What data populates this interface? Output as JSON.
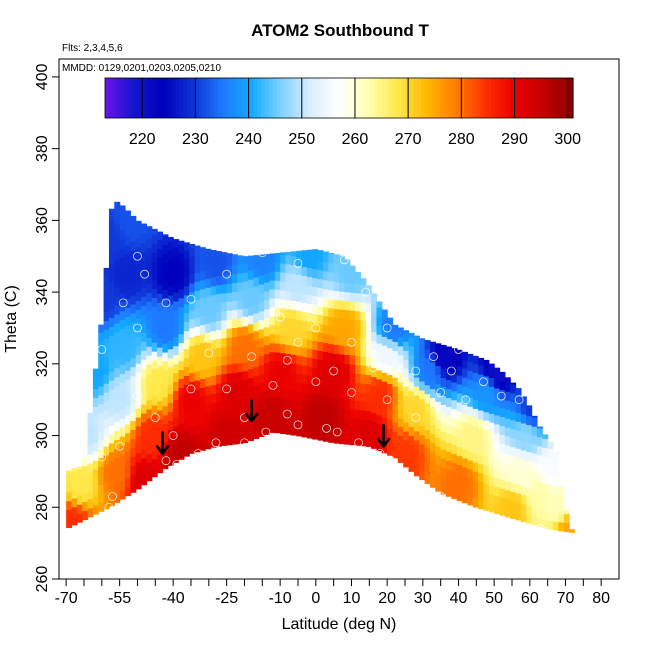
{
  "chart_data": {
    "type": "heatmap",
    "title": "ATOM2 Southbound T",
    "annotations": [
      "Flts: 2,3,4,5,6",
      "MMDD: 0129,0201,0203,0205,0210"
    ],
    "xlabel": "Latitude (deg N)",
    "ylabel": "Theta (C)",
    "xlim": [
      -72,
      85
    ],
    "ylim": [
      260,
      405
    ],
    "x_ticks": [
      -70,
      -55,
      -40,
      -25,
      -10,
      0,
      10,
      20,
      30,
      40,
      50,
      60,
      70,
      80
    ],
    "x_minor_ticks": [
      -65,
      -60,
      -50,
      -45,
      -35,
      -30,
      -20,
      -15,
      -5,
      5,
      15,
      25,
      35,
      45,
      55,
      65,
      75
    ],
    "y_ticks": [
      260,
      280,
      300,
      320,
      340,
      360,
      380,
      400
    ],
    "colorbar": {
      "min": 213,
      "max": 301,
      "ticks": [
        220,
        230,
        240,
        250,
        260,
        270,
        280,
        290,
        300
      ],
      "colors": [
        "#6a14ee",
        "#1414cd",
        "#0000bd",
        "#0f32d6",
        "#1e78ff",
        "#12aaff",
        "#7ed0ff",
        "#d8eeff",
        "#ffffff",
        "#ffffb4",
        "#ffe94a",
        "#ffb700",
        "#ff7d00",
        "#ff3000",
        "#eb0000",
        "#c40000",
        "#8a0000"
      ]
    },
    "envelope": {
      "top": [
        [
          -70,
          290
        ],
        [
          -65,
          292
        ],
        [
          -60,
          333
        ],
        [
          -57,
          366
        ],
        [
          -54,
          364
        ],
        [
          -50,
          360
        ],
        [
          -40,
          355
        ],
        [
          -30,
          352
        ],
        [
          -20,
          350
        ],
        [
          -10,
          351
        ],
        [
          0,
          352
        ],
        [
          8,
          350
        ],
        [
          14,
          343
        ],
        [
          18,
          337
        ],
        [
          22,
          331
        ],
        [
          30,
          327
        ],
        [
          40,
          324
        ],
        [
          48,
          321
        ],
        [
          52,
          318
        ],
        [
          57,
          313
        ],
        [
          60,
          308
        ],
        [
          63,
          302
        ],
        [
          66,
          298
        ],
        [
          68,
          294
        ],
        [
          70,
          280
        ],
        [
          72,
          273
        ]
      ],
      "bottom": [
        [
          -70,
          274
        ],
        [
          -58,
          280
        ],
        [
          -50,
          285
        ],
        [
          -42,
          291
        ],
        [
          -35,
          295
        ],
        [
          -28,
          297
        ],
        [
          -20,
          298
        ],
        [
          -12,
          301
        ],
        [
          -5,
          300
        ],
        [
          5,
          298
        ],
        [
          15,
          297
        ],
        [
          22,
          294
        ],
        [
          28,
          289
        ],
        [
          35,
          284
        ],
        [
          45,
          280
        ],
        [
          55,
          277
        ],
        [
          65,
          274
        ],
        [
          72,
          273
        ]
      ]
    },
    "field_points": [
      [
        -68,
        276,
        285
      ],
      [
        -66,
        286,
        268
      ],
      [
        -64,
        300,
        250
      ],
      [
        -62,
        318,
        240
      ],
      [
        -60,
        338,
        230
      ],
      [
        -58,
        355,
        230
      ],
      [
        -56,
        290,
        280
      ],
      [
        -55,
        310,
        250
      ],
      [
        -54,
        325,
        242
      ],
      [
        -53,
        345,
        228
      ],
      [
        -52,
        360,
        232
      ],
      [
        -48,
        288,
        292
      ],
      [
        -46,
        300,
        285
      ],
      [
        -44,
        315,
        268
      ],
      [
        -42,
        330,
        235
      ],
      [
        -40,
        345,
        224
      ],
      [
        -38,
        295,
        296
      ],
      [
        -35,
        310,
        290
      ],
      [
        -32,
        322,
        272
      ],
      [
        -30,
        335,
        245
      ],
      [
        -28,
        348,
        232
      ],
      [
        -25,
        300,
        294
      ],
      [
        -22,
        312,
        292
      ],
      [
        -20,
        325,
        280
      ],
      [
        -18,
        338,
        245
      ],
      [
        -15,
        349,
        236
      ],
      [
        -12,
        305,
        295
      ],
      [
        -10,
        318,
        290
      ],
      [
        -7,
        330,
        270
      ],
      [
        -5,
        342,
        250
      ],
      [
        -2,
        350,
        240
      ],
      [
        2,
        305,
        296
      ],
      [
        5,
        318,
        292
      ],
      [
        8,
        330,
        275
      ],
      [
        10,
        345,
        245
      ],
      [
        15,
        300,
        292
      ],
      [
        18,
        312,
        285
      ],
      [
        20,
        322,
        255
      ],
      [
        22,
        330,
        235
      ],
      [
        25,
        295,
        284
      ],
      [
        28,
        308,
        270
      ],
      [
        32,
        318,
        235
      ],
      [
        36,
        322,
        222
      ],
      [
        40,
        287,
        280
      ],
      [
        44,
        300,
        265
      ],
      [
        48,
        312,
        238
      ],
      [
        51,
        318,
        220
      ],
      [
        55,
        280,
        272
      ],
      [
        57,
        290,
        260
      ],
      [
        59,
        300,
        247
      ],
      [
        61,
        307,
        230
      ],
      [
        63,
        284,
        263
      ],
      [
        66,
        290,
        256
      ],
      [
        68,
        280,
        262
      ],
      [
        71,
        274,
        275
      ]
    ],
    "markers": [
      [
        -42,
        293
      ],
      [
        -39,
        292
      ],
      [
        -33,
        295
      ],
      [
        -28,
        298
      ],
      [
        -20,
        298
      ],
      [
        -14,
        301
      ],
      [
        -5,
        303
      ],
      [
        3,
        302
      ],
      [
        12,
        298
      ],
      [
        18,
        295
      ],
      [
        21,
        293
      ],
      [
        -45,
        305
      ],
      [
        -35,
        313
      ],
      [
        -25,
        313
      ],
      [
        -12,
        314
      ],
      [
        0,
        315
      ],
      [
        10,
        312
      ],
      [
        20,
        310
      ],
      [
        28,
        305
      ],
      [
        -55,
        297
      ],
      [
        -50,
        311
      ],
      [
        -45,
        320
      ],
      [
        -30,
        323
      ],
      [
        -18,
        322
      ],
      [
        -8,
        321
      ],
      [
        5,
        318
      ],
      [
        16,
        319
      ],
      [
        28,
        318
      ],
      [
        38,
        318
      ],
      [
        47,
        315
      ],
      [
        -54,
        337
      ],
      [
        -50,
        330
      ],
      [
        -42,
        337
      ],
      [
        -35,
        338
      ],
      [
        -25,
        345
      ],
      [
        -15,
        351
      ],
      [
        -5,
        348
      ],
      [
        8,
        349
      ],
      [
        14,
        340
      ],
      [
        20,
        330
      ],
      [
        33,
        322
      ],
      [
        40,
        324
      ],
      [
        -60,
        324
      ],
      [
        -48,
        345
      ],
      [
        -50,
        350
      ],
      [
        52,
        311
      ],
      [
        57,
        310
      ],
      [
        60,
        286
      ],
      [
        63,
        274
      ],
      [
        25,
        286
      ],
      [
        35,
        283
      ],
      [
        45,
        277
      ],
      [
        50,
        274
      ],
      [
        55,
        273
      ],
      [
        -58,
        280
      ],
      [
        -57,
        283
      ],
      [
        -40,
        300
      ],
      [
        -20,
        305
      ],
      [
        -8,
        306
      ],
      [
        6,
        301
      ],
      [
        0,
        330
      ],
      [
        -10,
        333
      ],
      [
        -20,
        332
      ],
      [
        -30,
        327
      ],
      [
        10,
        326
      ],
      [
        35,
        312
      ],
      [
        42,
        310
      ],
      [
        48,
        303
      ],
      [
        -60,
        294
      ],
      [
        -5,
        326
      ],
      [
        25,
        315
      ]
    ],
    "arrows": [
      [
        -43,
        295
      ],
      [
        -18,
        304
      ],
      [
        19,
        297
      ]
    ]
  }
}
